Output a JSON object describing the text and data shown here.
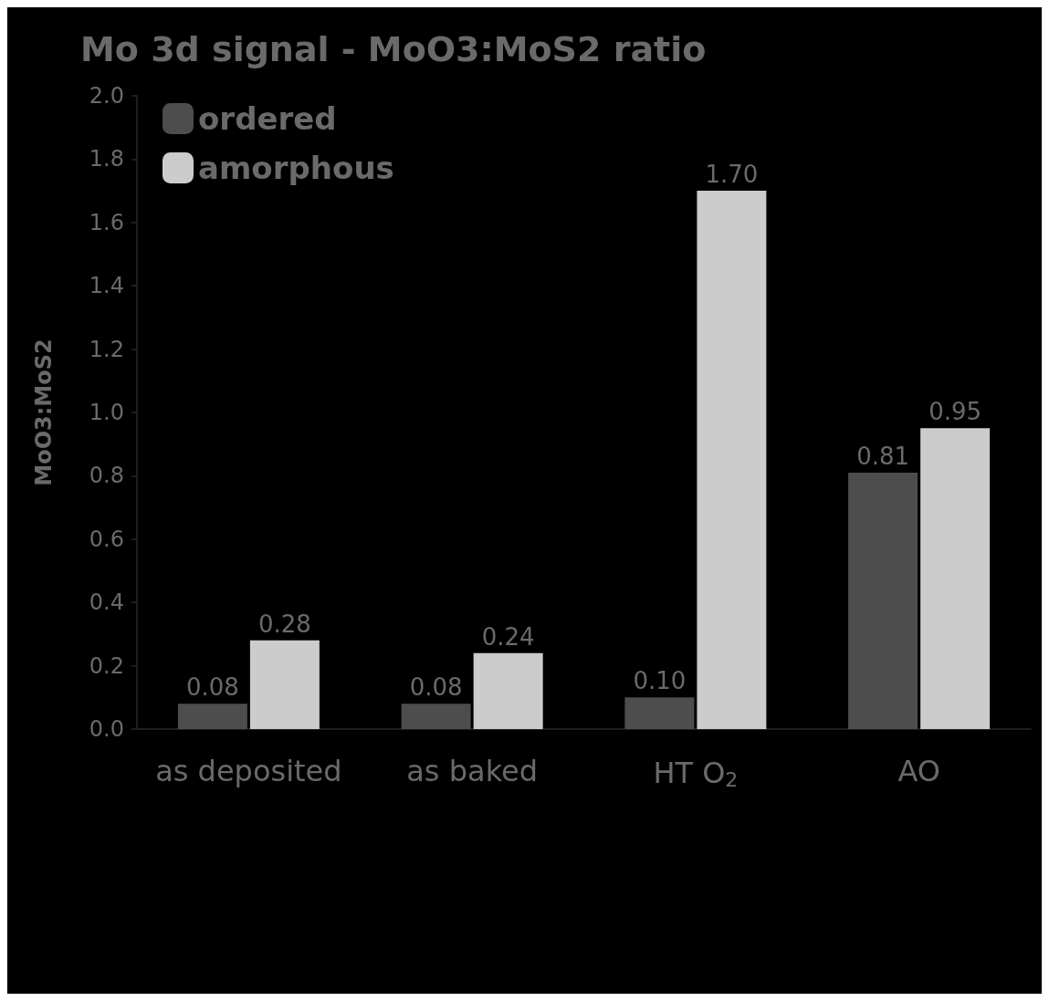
{
  "chart_data": {
    "type": "bar",
    "title": "Mo 3d signal - MoO3:MoS2 ratio",
    "ylabel": "MoO3:MoS2",
    "categories": [
      "as deposited",
      "as baked",
      "HT O$_{2}$",
      "AO"
    ],
    "series": [
      {
        "name": "ordered",
        "color": "#4d4d4d",
        "values": [
          0.08,
          0.08,
          0.1,
          0.81
        ],
        "value_labels": [
          "0.08",
          "0.08",
          "0.10",
          "0.81"
        ]
      },
      {
        "name": "amorphous",
        "color": "#cccccc",
        "values": [
          0.28,
          0.24,
          1.7,
          0.95
        ],
        "value_labels": [
          "0.28",
          "0.24",
          "1.70",
          "0.95"
        ]
      }
    ],
    "ylim": [
      0,
      2
    ],
    "yticks": [
      {
        "value": 0,
        "label": "0.0"
      },
      0.2,
      0.4,
      0.6,
      0.8,
      {
        "value": 1,
        "label": "1.0"
      },
      1.2,
      1.4,
      1.6,
      1.8,
      {
        "value": 2,
        "label": "2.0"
      }
    ],
    "grid": false,
    "legend": "top left"
  }
}
